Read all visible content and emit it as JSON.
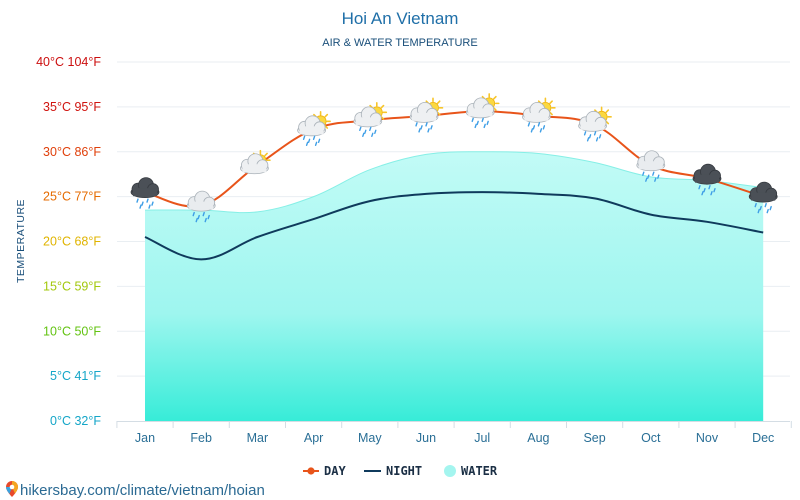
{
  "chart_data": {
    "type": "line",
    "title": "Hoi An Vietnam",
    "subtitle": "AIR & WATER TEMPERATURE",
    "ylabel": "TEMPERATURE",
    "categories": [
      "Jan",
      "Feb",
      "Mar",
      "Apr",
      "May",
      "Jun",
      "Jul",
      "Aug",
      "Sep",
      "Oct",
      "Nov",
      "Dec"
    ],
    "ylim": [
      0,
      40
    ],
    "y_ticks": [
      {
        "value": 0,
        "label": "0°C 32°F",
        "color": "#15a6c8"
      },
      {
        "value": 5,
        "label": "5°C 41°F",
        "color": "#15a6c8"
      },
      {
        "value": 10,
        "label": "10°C 50°F",
        "color": "#63c312"
      },
      {
        "value": 15,
        "label": "15°C 59°F",
        "color": "#a3c80c"
      },
      {
        "value": 20,
        "label": "20°C 68°F",
        "color": "#e0b400"
      },
      {
        "value": 25,
        "label": "25°C 77°F",
        "color": "#e56b00"
      },
      {
        "value": 30,
        "label": "30°C 86°F",
        "color": "#e0400b"
      },
      {
        "value": 35,
        "label": "35°C 95°F",
        "color": "#d0140f"
      },
      {
        "value": 40,
        "label": "40°C 104°F",
        "color": "#cc0f0f"
      }
    ],
    "grid": true,
    "legend_position": "bottom-center",
    "series": [
      {
        "name": "DAY",
        "type": "line",
        "color": "#e8541a",
        "values": [
          25.5,
          24.0,
          28.5,
          32.5,
          33.5,
          34.0,
          34.5,
          34.0,
          33.0,
          28.5,
          27.0,
          25.0
        ]
      },
      {
        "name": "NIGHT",
        "type": "line",
        "color": "#0f3a5c",
        "values": [
          20.5,
          18.0,
          20.5,
          22.5,
          24.5,
          25.3,
          25.5,
          25.3,
          24.8,
          23.0,
          22.2,
          21.0
        ]
      },
      {
        "name": "WATER",
        "type": "area",
        "color": "#8ff2ec",
        "values": [
          23.5,
          23.5,
          23.3,
          25.0,
          28.0,
          29.7,
          30.0,
          29.8,
          28.8,
          27.2,
          26.8,
          26.0
        ]
      }
    ],
    "weather_icons": [
      "rain-cloud-dark",
      "rain-cloud",
      "sun-cloud",
      "sun-cloud-rain",
      "sun-cloud-rain",
      "sun-cloud-rain",
      "sun-cloud-rain",
      "sun-cloud-rain",
      "sun-cloud-rain",
      "rain-cloud",
      "rain-cloud-dark",
      "rain-cloud-dark"
    ]
  },
  "source": {
    "text": "hikersbay.com/climate/vietnam/hoian",
    "pin_icon": "map-pin-icon"
  }
}
